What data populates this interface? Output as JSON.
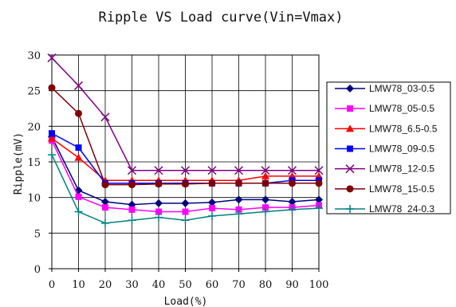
{
  "chart_data": {
    "type": "line",
    "title": "Ripple VS Load curve(Vin=Vmax)",
    "xlabel": "Load(%)",
    "ylabel": "Ripple(mV)",
    "x": [
      0,
      10,
      20,
      30,
      40,
      50,
      60,
      70,
      80,
      90,
      100
    ],
    "xlim": [
      0,
      100
    ],
    "ylim": [
      0,
      30
    ],
    "xticks": [
      0,
      10,
      20,
      30,
      40,
      50,
      60,
      70,
      80,
      90,
      100
    ],
    "yticks": [
      0,
      5,
      10,
      15,
      20,
      25,
      30
    ],
    "grid": true,
    "legend_position": "right",
    "series": [
      {
        "name": "LMW78_03-0.5",
        "color": "#000080",
        "marker": "diamond",
        "values": [
          18.5,
          11.0,
          9.4,
          9.0,
          9.2,
          9.2,
          9.3,
          9.7,
          9.7,
          9.4,
          9.7
        ]
      },
      {
        "name": "LMW78_05-0.5",
        "color": "#ff00ff",
        "marker": "square",
        "values": [
          18.0,
          10.1,
          8.6,
          8.3,
          8.0,
          8.0,
          8.5,
          8.3,
          8.6,
          8.6,
          8.9
        ]
      },
      {
        "name": "LMW78_6.5-0.5",
        "color": "#ff0000",
        "marker": "triangle",
        "values": [
          18.3,
          15.6,
          12.4,
          12.4,
          12.4,
          12.4,
          12.4,
          12.4,
          13.0,
          13.0,
          13.0
        ]
      },
      {
        "name": "LMW78_09-0.5",
        "color": "#0000ff",
        "marker": "square",
        "values": [
          19.0,
          17.0,
          12.0,
          12.0,
          12.0,
          12.0,
          12.0,
          12.0,
          12.0,
          12.4,
          12.4
        ]
      },
      {
        "name": "LMW78_12-0.5",
        "color": "#800080",
        "marker": "x",
        "values": [
          29.6,
          25.7,
          21.3,
          13.8,
          13.8,
          13.8,
          13.8,
          13.8,
          13.8,
          13.8,
          13.8
        ]
      },
      {
        "name": "LMW78_15-0.5",
        "color": "#800000",
        "marker": "circle",
        "values": [
          25.4,
          21.8,
          11.8,
          11.8,
          11.9,
          11.9,
          12.0,
          12.0,
          12.0,
          12.0,
          12.0
        ]
      },
      {
        "name": "LMW78_24-0.3",
        "color": "#008080",
        "marker": "plus",
        "values": [
          16.0,
          8.0,
          6.4,
          6.8,
          7.2,
          6.8,
          7.4,
          7.7,
          8.0,
          8.3,
          8.5
        ]
      }
    ]
  }
}
